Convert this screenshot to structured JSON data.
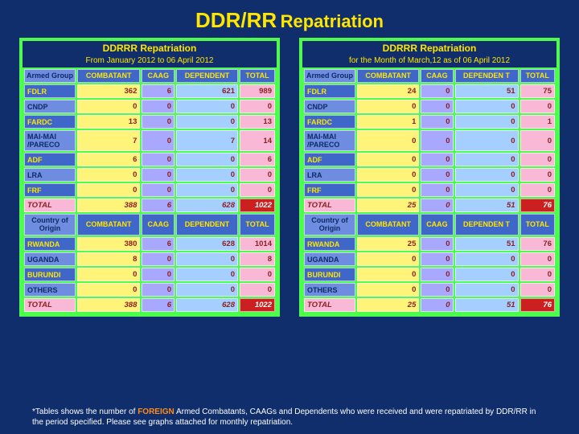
{
  "title_main": "DDR/RR",
  "title_sub": "Repatriation",
  "left": {
    "head": "DDRRR Repatriation",
    "sub": "From January 2012 to 06 April 2012",
    "cols": [
      "Armed Group",
      "COMBATANT",
      "CAAG",
      "DEPENDENT",
      "TOTAL"
    ],
    "rows": [
      {
        "lbl": "FDLR",
        "alt": false,
        "v": [
          "362",
          "6",
          "621",
          "989"
        ]
      },
      {
        "lbl": "CNDP",
        "alt": true,
        "v": [
          "0",
          "0",
          "0",
          "0"
        ]
      },
      {
        "lbl": "FARDC",
        "alt": false,
        "v": [
          "13",
          "0",
          "0",
          "13"
        ]
      },
      {
        "lbl": "MAI-MAI /PARECO",
        "alt": true,
        "v": [
          "7",
          "0",
          "7",
          "14"
        ]
      },
      {
        "lbl": "ADF",
        "alt": false,
        "v": [
          "6",
          "0",
          "0",
          "6"
        ]
      },
      {
        "lbl": "LRA",
        "alt": true,
        "v": [
          "0",
          "0",
          "0",
          "0"
        ]
      },
      {
        "lbl": "FRF",
        "alt": false,
        "v": [
          "0",
          "0",
          "0",
          "0"
        ]
      }
    ],
    "total1": [
      "TOTAL",
      "388",
      "6",
      "628",
      "1022"
    ],
    "cols2": [
      "Country of Origin",
      "COMBATANT",
      "CAAG",
      "DEPENDENT",
      "TOTAL"
    ],
    "rows2": [
      {
        "lbl": "RWANDA",
        "alt": false,
        "v": [
          "380",
          "6",
          "628",
          "1014"
        ]
      },
      {
        "lbl": "UGANDA",
        "alt": true,
        "v": [
          "8",
          "0",
          "0",
          "8"
        ]
      },
      {
        "lbl": "BURUNDI",
        "alt": false,
        "v": [
          "0",
          "0",
          "0",
          "0"
        ]
      },
      {
        "lbl": "OTHERS",
        "alt": true,
        "v": [
          "0",
          "0",
          "0",
          "0"
        ]
      }
    ],
    "total2": [
      "TOTAL",
      "388",
      "6",
      "628",
      "1022"
    ]
  },
  "right": {
    "head": "DDRRR Repatriation",
    "sub": "for the Month of March,12 as of 06 April 2012",
    "cols": [
      "Armed Group",
      "COMBATANT",
      "CAAG",
      "DEPENDEN T",
      "TOTAL"
    ],
    "rows": [
      {
        "lbl": "FDLR",
        "alt": false,
        "v": [
          "24",
          "0",
          "51",
          "75"
        ]
      },
      {
        "lbl": "CNDP",
        "alt": true,
        "v": [
          "0",
          "0",
          "0",
          "0"
        ]
      },
      {
        "lbl": "FARDC",
        "alt": false,
        "v": [
          "1",
          "0",
          "0",
          "1"
        ]
      },
      {
        "lbl": "MAI-MAI /PARECO",
        "alt": true,
        "v": [
          "0",
          "0",
          "0",
          "0"
        ]
      },
      {
        "lbl": "ADF",
        "alt": false,
        "v": [
          "0",
          "0",
          "0",
          "0"
        ]
      },
      {
        "lbl": "LRA",
        "alt": true,
        "v": [
          "0",
          "0",
          "0",
          "0"
        ]
      },
      {
        "lbl": "FRF",
        "alt": false,
        "v": [
          "0",
          "0",
          "0",
          "0"
        ]
      }
    ],
    "total1": [
      "TOTAL",
      "25",
      "0",
      "51",
      "76"
    ],
    "cols2": [
      "Country of Origin",
      "COMBATANT",
      "CAAG",
      "DEPENDEN T",
      "TOTAL"
    ],
    "rows2": [
      {
        "lbl": "RWANDA",
        "alt": false,
        "v": [
          "25",
          "0",
          "51",
          "76"
        ]
      },
      {
        "lbl": "UGANDA",
        "alt": true,
        "v": [
          "0",
          "0",
          "0",
          "0"
        ]
      },
      {
        "lbl": "BURUNDI",
        "alt": false,
        "v": [
          "0",
          "0",
          "0",
          "0"
        ]
      },
      {
        "lbl": "OTHERS",
        "alt": true,
        "v": [
          "0",
          "0",
          "0",
          "0"
        ]
      }
    ],
    "total2": [
      "TOTAL",
      "25",
      "0",
      "51",
      "76"
    ]
  },
  "foot_a": "*Tables shows the number of ",
  "foot_b": "FOREIGN",
  "foot_c": " Armed Combatants, CAAGs and Dependents who were received and were repatriated by DDR/RR in the period specified. Please see graphs attached for monthly repatriation."
}
